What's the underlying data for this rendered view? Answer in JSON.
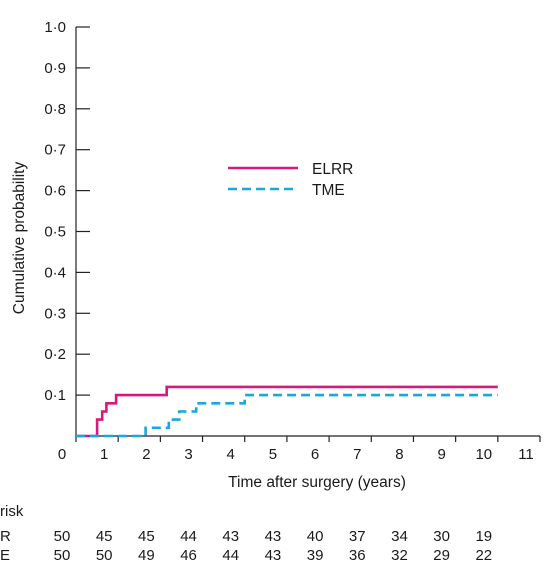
{
  "chart_data": {
    "type": "line",
    "step": true,
    "title": "",
    "xlabel": "Time after surgery (years)",
    "ylabel": "Cumulative probability",
    "xlim": [
      0,
      11
    ],
    "ylim": [
      0,
      1.0
    ],
    "x_ticks": [
      0,
      1,
      2,
      3,
      4,
      5,
      6,
      7,
      8,
      9,
      10,
      11
    ],
    "x_tick_labels": [
      "0",
      "1",
      "2",
      "3",
      "4",
      "5",
      "6",
      "7",
      "8",
      "9",
      "10",
      "11"
    ],
    "y_ticks": [
      0.1,
      0.2,
      0.3,
      0.4,
      0.5,
      0.6,
      0.7,
      0.8,
      0.9,
      1.0
    ],
    "y_tick_labels": [
      "0·1",
      "0·2",
      "0·3",
      "0·4",
      "0·5",
      "0·6",
      "0·7",
      "0·8",
      "0·9",
      "1·0"
    ],
    "grid": false,
    "legend_position": "center",
    "series": [
      {
        "name": "ELRR",
        "color": "#d6197c",
        "dash": "solid",
        "points": [
          [
            0,
            0
          ],
          [
            0.5,
            0
          ],
          [
            0.5,
            0.04
          ],
          [
            0.62,
            0.04
          ],
          [
            0.62,
            0.06
          ],
          [
            0.72,
            0.06
          ],
          [
            0.72,
            0.08
          ],
          [
            0.95,
            0.08
          ],
          [
            0.95,
            0.1
          ],
          [
            2.15,
            0.1
          ],
          [
            2.15,
            0.12
          ],
          [
            10,
            0.12
          ]
        ]
      },
      {
        "name": "TME",
        "color": "#1ba6dc",
        "dash": "dashed",
        "points": [
          [
            0,
            0
          ],
          [
            1.65,
            0
          ],
          [
            1.65,
            0.02
          ],
          [
            2.2,
            0.02
          ],
          [
            2.2,
            0.04
          ],
          [
            2.45,
            0.04
          ],
          [
            2.45,
            0.06
          ],
          [
            2.85,
            0.06
          ],
          [
            2.85,
            0.08
          ],
          [
            4.0,
            0.08
          ],
          [
            4.0,
            0.1
          ],
          [
            10,
            0.1
          ]
        ]
      }
    ],
    "at_risk": {
      "header": "risk",
      "x": [
        0,
        1,
        2,
        3,
        4,
        5,
        6,
        7,
        8,
        9,
        10
      ],
      "rows": [
        {
          "label": "R",
          "values": [
            "50",
            "45",
            "45",
            "44",
            "43",
            "43",
            "40",
            "37",
            "34",
            "30",
            "19"
          ]
        },
        {
          "label": "E",
          "values": [
            "50",
            "50",
            "49",
            "46",
            "44",
            "43",
            "39",
            "36",
            "32",
            "29",
            "22"
          ]
        }
      ]
    }
  }
}
